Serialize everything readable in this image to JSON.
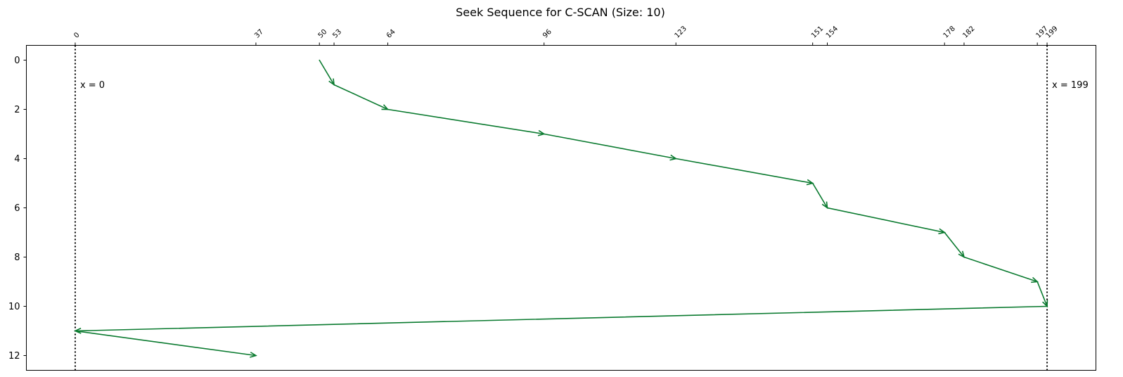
{
  "chart_data": {
    "type": "line",
    "title": "Seek Sequence for C-SCAN (Size: 10)",
    "xlabel": "",
    "ylabel": "",
    "series": [
      {
        "x": [
          50,
          53,
          64,
          96,
          123,
          151,
          154,
          178,
          182,
          197,
          199,
          0,
          37
        ],
        "y": [
          0,
          1,
          2,
          3,
          4,
          5,
          6,
          7,
          8,
          9,
          10,
          11,
          12
        ]
      }
    ],
    "x_ticks_top": [
      0,
      37,
      50,
      53,
      64,
      96,
      123,
      151,
      154,
      178,
      182,
      197,
      199
    ],
    "y_ticks": [
      0,
      2,
      4,
      6,
      8,
      10,
      12
    ],
    "xlim": [
      -10,
      209
    ],
    "ylim": [
      12.6,
      -0.6
    ],
    "y_inverted": true,
    "grid": false,
    "vertical_lines": [
      {
        "x": 0,
        "label": "x = 0"
      },
      {
        "x": 199,
        "label": "x = 199"
      }
    ],
    "line_color": "#0a7a2f"
  }
}
